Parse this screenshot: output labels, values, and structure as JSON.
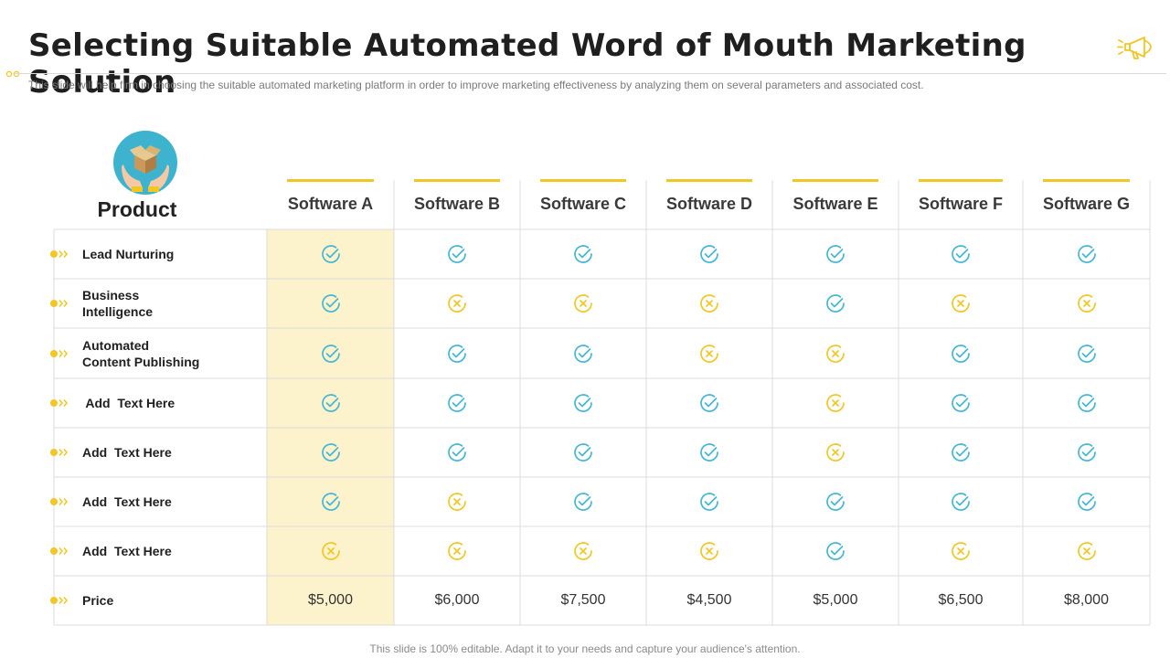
{
  "title": "Selecting Suitable Automated Word of Mouth Marketing Solution",
  "subtitle": "This slide will help firm in choosing the suitable automated marketing platform in order to improve  marketing effectiveness  by analyzing them on several parameters and associated cost.",
  "footer": "This slide is 100% editable. Adapt it to your needs and capture your audience's attention.",
  "colors": {
    "accent": "#f2c623",
    "highlight": "#fcf2cc",
    "check": "#45b6d6",
    "cross": "#f2c623",
    "teal_circle": "#3db3cf"
  },
  "product_header": "Product",
  "columns": [
    "Software A",
    "Software B",
    "Software C",
    "Software D",
    "Software E",
    "Software F",
    "Software G"
  ],
  "rows": [
    {
      "label": "Lead Nurturing",
      "values": [
        "check",
        "check",
        "check",
        "check",
        "check",
        "check",
        "check"
      ]
    },
    {
      "label": "Business\nIntelligence",
      "values": [
        "check",
        "cross",
        "cross",
        "cross",
        "check",
        "cross",
        "cross"
      ]
    },
    {
      "label": "Automated\nContent Publishing",
      "values": [
        "check",
        "check",
        "check",
        "cross",
        "cross",
        "check",
        "check"
      ]
    },
    {
      "label": " Add  Text Here",
      "values": [
        "check",
        "check",
        "check",
        "check",
        "cross",
        "check",
        "check"
      ]
    },
    {
      "label": "Add  Text Here",
      "values": [
        "check",
        "check",
        "check",
        "check",
        "cross",
        "check",
        "check"
      ]
    },
    {
      "label": "Add  Text Here",
      "values": [
        "check",
        "cross",
        "check",
        "check",
        "check",
        "check",
        "check"
      ]
    },
    {
      "label": "Add  Text Here",
      "values": [
        "cross",
        "cross",
        "cross",
        "cross",
        "check",
        "cross",
        "cross"
      ]
    }
  ],
  "price": {
    "label": "Price",
    "values": [
      "$5,000",
      "$6,000",
      "$7,500",
      "$4,500",
      "$5,000",
      "$6,500",
      "$8,000"
    ]
  }
}
